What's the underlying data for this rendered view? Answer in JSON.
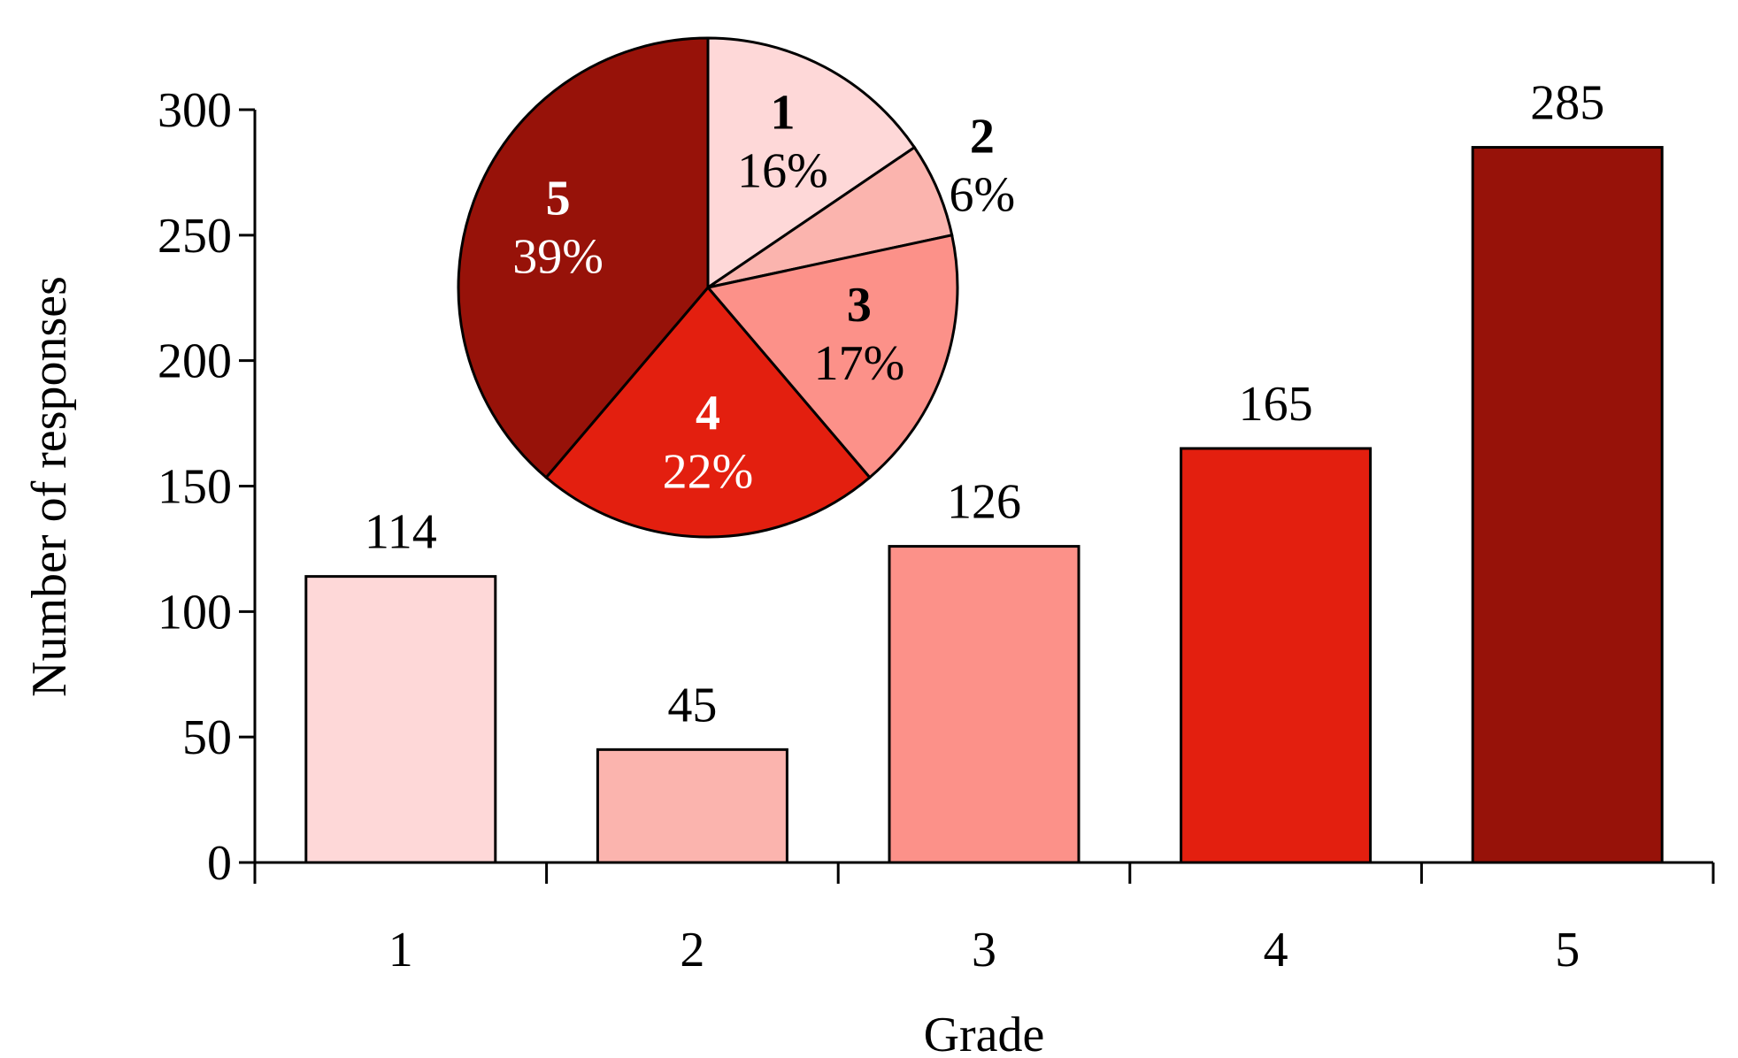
{
  "chart_data": [
    {
      "type": "bar",
      "xlabel": "Grade",
      "ylabel": "Number of responses",
      "categories": [
        "1",
        "2",
        "3",
        "4",
        "5"
      ],
      "values": [
        114,
        45,
        126,
        165,
        285
      ],
      "colors": [
        "#fed8d8",
        "#fbb4ae",
        "#fc9189",
        "#e31f0f",
        "#971209"
      ],
      "ylim": [
        0,
        300
      ],
      "yticks": [
        0,
        50,
        100,
        150,
        200,
        250,
        300
      ],
      "grid": false,
      "legend": "none"
    },
    {
      "type": "pie",
      "labels": [
        "1",
        "2",
        "3",
        "4",
        "5"
      ],
      "percent_labels": [
        "16%",
        "6%",
        "17%",
        "22%",
        "39%"
      ],
      "values": [
        114,
        45,
        126,
        165,
        285
      ],
      "colors": [
        "#fed8d8",
        "#fbb4ae",
        "#fc9189",
        "#e31f0f",
        "#971209"
      ],
      "label_colors": [
        "#000000",
        "#000000",
        "#000000",
        "#ffffff",
        "#ffffff"
      ]
    }
  ]
}
